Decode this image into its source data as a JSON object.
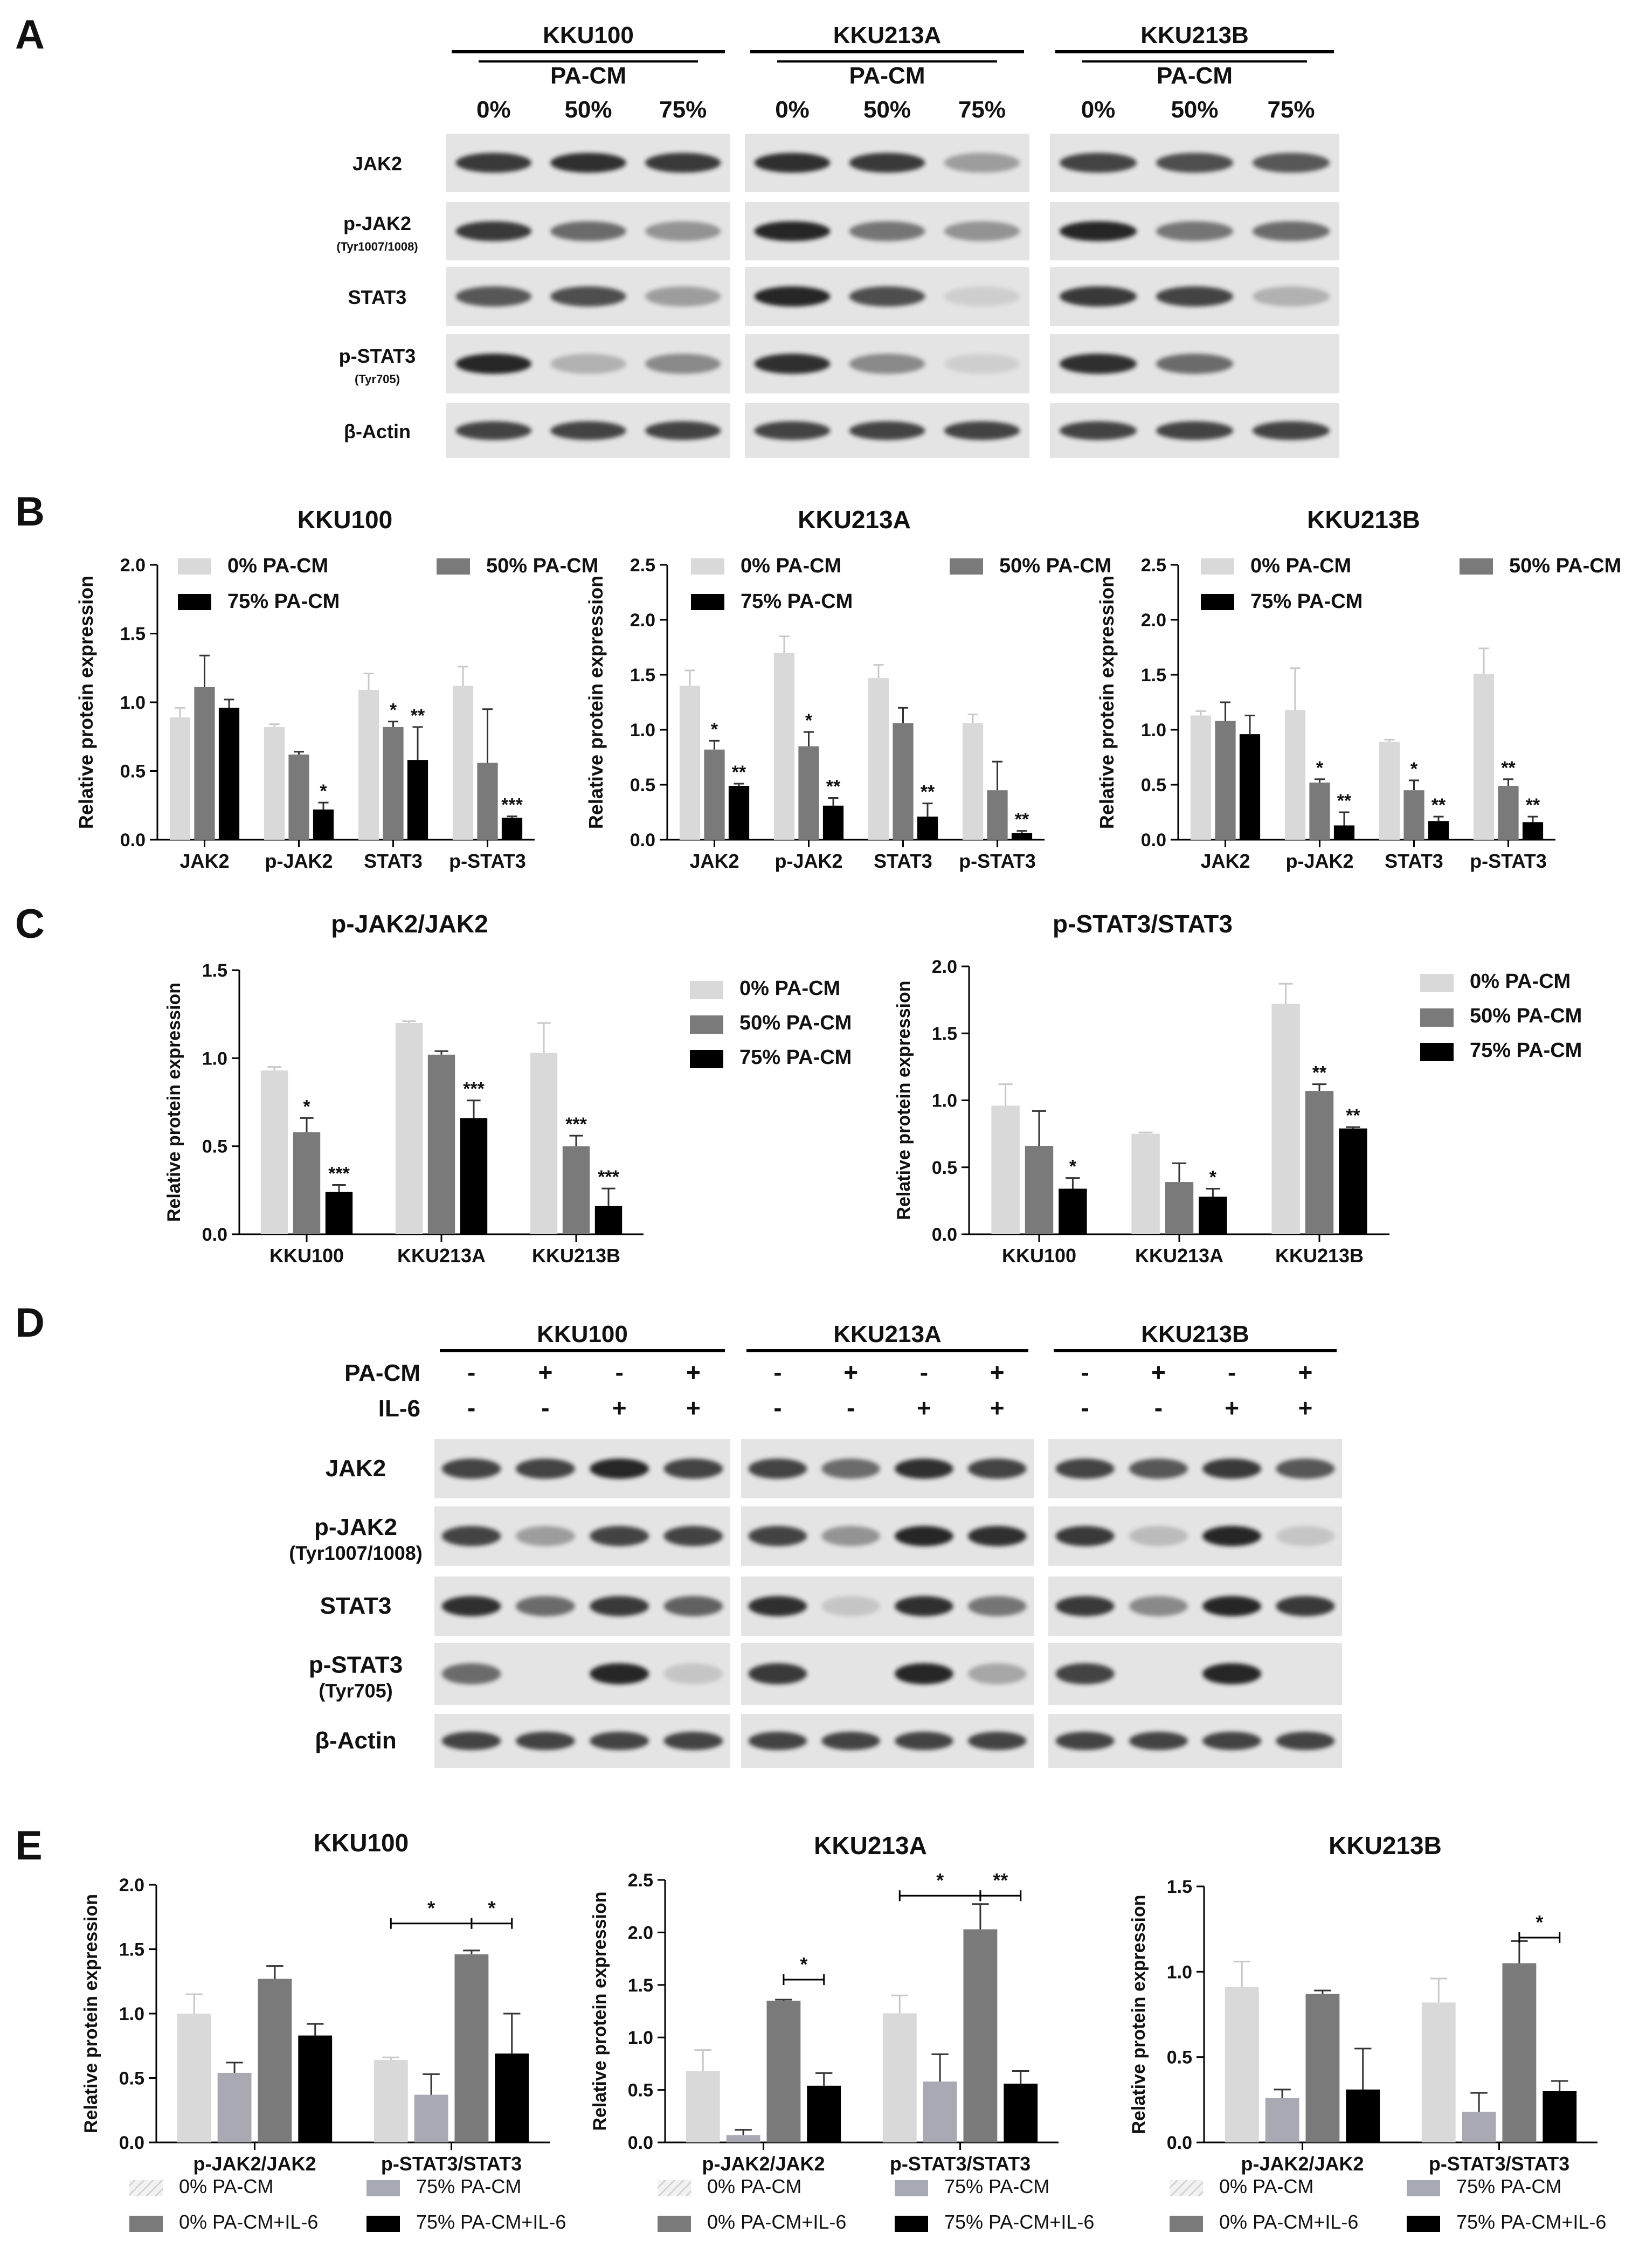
{
  "panels": {
    "A": {
      "letter": "A",
      "cell_lines": [
        "KKU100",
        "KKU213A",
        "KKU213B"
      ],
      "treatment_label": "PA-CM",
      "doses": [
        "0%",
        "50%",
        "75%"
      ],
      "proteins": [
        {
          "name": "JAK2",
          "sub": ""
        },
        {
          "name": "p-JAK2",
          "sub": "(Tyr1007/1008)"
        },
        {
          "name": "STAT3",
          "sub": ""
        },
        {
          "name": "p-STAT3",
          "sub": "(Tyr705)"
        },
        {
          "name": "β-Actin",
          "sub": ""
        }
      ],
      "band_intensity": [
        [
          [
            0.85,
            0.9,
            0.85
          ],
          [
            0.9,
            0.85,
            0.35
          ],
          [
            0.8,
            0.75,
            0.7
          ]
        ],
        [
          [
            0.85,
            0.6,
            0.4
          ],
          [
            0.95,
            0.55,
            0.4
          ],
          [
            0.95,
            0.55,
            0.6
          ]
        ],
        [
          [
            0.7,
            0.75,
            0.35
          ],
          [
            0.95,
            0.75,
            0.1
          ],
          [
            0.85,
            0.8,
            0.25
          ]
        ],
        [
          [
            0.95,
            0.25,
            0.45
          ],
          [
            0.9,
            0.45,
            0.1
          ],
          [
            0.9,
            0.6,
            0.0
          ]
        ],
        [
          [
            0.8,
            0.8,
            0.8
          ],
          [
            0.8,
            0.8,
            0.8
          ],
          [
            0.8,
            0.8,
            0.8
          ]
        ]
      ]
    },
    "B": {
      "letter": "B"
    },
    "C": {
      "letter": "C"
    },
    "D": {
      "letter": "D",
      "cell_lines": [
        "KKU100",
        "KKU213A",
        "KKU213B"
      ],
      "row_labels": [
        "PA-CM",
        "IL-6"
      ],
      "pacm_signs": [
        "-",
        "+",
        "-",
        "+"
      ],
      "il6_signs": [
        "-",
        "-",
        "+",
        "+"
      ],
      "proteins": [
        {
          "name": "JAK2",
          "sub": ""
        },
        {
          "name": "p-JAK2",
          "sub": "(Tyr1007/1008)"
        },
        {
          "name": "STAT3",
          "sub": ""
        },
        {
          "name": "p-STAT3",
          "sub": "(Tyr705)"
        },
        {
          "name": "β-Actin",
          "sub": ""
        }
      ],
      "band_intensity": [
        [
          [
            0.8,
            0.8,
            0.95,
            0.8
          ],
          [
            0.8,
            0.6,
            0.9,
            0.8
          ],
          [
            0.8,
            0.7,
            0.85,
            0.7
          ]
        ],
        [
          [
            0.8,
            0.35,
            0.8,
            0.8
          ],
          [
            0.8,
            0.4,
            0.95,
            0.9
          ],
          [
            0.85,
            0.2,
            0.95,
            0.15
          ]
        ],
        [
          [
            0.9,
            0.6,
            0.85,
            0.65
          ],
          [
            0.9,
            0.15,
            0.9,
            0.55
          ],
          [
            0.85,
            0.45,
            0.95,
            0.85
          ]
        ],
        [
          [
            0.6,
            0.0,
            0.95,
            0.15
          ],
          [
            0.85,
            0.0,
            0.95,
            0.3
          ],
          [
            0.8,
            0.0,
            0.95,
            0.0
          ]
        ],
        [
          [
            0.8,
            0.8,
            0.8,
            0.8
          ],
          [
            0.8,
            0.8,
            0.8,
            0.8
          ],
          [
            0.8,
            0.8,
            0.8,
            0.8
          ]
        ]
      ]
    },
    "E": {
      "letter": "E"
    }
  },
  "colors": {
    "c0": "#d9d9d9",
    "c50": "#7a7a7a",
    "c75": "#000000",
    "c75light": "#a9a9b3",
    "err": "#c8c8c8",
    "blot_bg": "#e4e4e4",
    "band": "#1a1a1a"
  },
  "chart_data": [
    {
      "id": "B1",
      "type": "bar",
      "title": "KKU100",
      "ylabel": "Relative protein expression",
      "categories": [
        "JAK2",
        "p-JAK2",
        "STAT3",
        "p-STAT3"
      ],
      "ylim": [
        0,
        2.0
      ],
      "yticks": [
        "0.0",
        "0.5",
        "1.0",
        "1.5",
        "2.0"
      ],
      "legend": "top",
      "series": [
        {
          "name": "0% PA-CM",
          "color": "c0",
          "values": [
            0.89,
            0.82,
            1.09,
            1.12
          ],
          "err": [
            0.07,
            0.02,
            0.12,
            0.14
          ],
          "sig": [
            "",
            "",
            "",
            ""
          ]
        },
        {
          "name": "50% PA-CM",
          "color": "c50",
          "values": [
            1.11,
            0.62,
            0.82,
            0.56
          ],
          "err": [
            0.23,
            0.02,
            0.04,
            0.39
          ],
          "sig": [
            "",
            "",
            "*",
            ""
          ]
        },
        {
          "name": "75% PA-CM",
          "color": "c75",
          "values": [
            0.96,
            0.22,
            0.58,
            0.16
          ],
          "err": [
            0.06,
            0.05,
            0.24,
            0.01
          ],
          "sig": [
            "",
            "*",
            "**",
            "***"
          ]
        }
      ]
    },
    {
      "id": "B2",
      "type": "bar",
      "title": "KKU213A",
      "ylabel": "Relative protein expression",
      "categories": [
        "JAK2",
        "p-JAK2",
        "STAT3",
        "p-STAT3"
      ],
      "ylim": [
        0,
        2.5
      ],
      "yticks": [
        "0.0",
        "0.5",
        "1.0",
        "1.5",
        "2.0",
        "2.5"
      ],
      "legend": "top",
      "series": [
        {
          "name": "0% PA-CM",
          "color": "c0",
          "values": [
            1.4,
            1.7,
            1.47,
            1.06
          ],
          "err": [
            0.14,
            0.15,
            0.12,
            0.08
          ],
          "sig": [
            "",
            "",
            "",
            ""
          ]
        },
        {
          "name": "50% PA-CM",
          "color": "c50",
          "values": [
            0.82,
            0.85,
            1.06,
            0.45
          ],
          "err": [
            0.08,
            0.13,
            0.14,
            0.26
          ],
          "sig": [
            "*",
            "*",
            "",
            ""
          ]
        },
        {
          "name": "75% PA-CM",
          "color": "c75",
          "values": [
            0.49,
            0.31,
            0.21,
            0.06
          ],
          "err": [
            0.02,
            0.07,
            0.12,
            0.02
          ],
          "sig": [
            "**",
            "**",
            "**",
            "**"
          ]
        }
      ]
    },
    {
      "id": "B3",
      "type": "bar",
      "title": "KKU213B",
      "ylabel": "Relative protein expression",
      "categories": [
        "JAK2",
        "p-JAK2",
        "STAT3",
        "p-STAT3"
      ],
      "ylim": [
        0,
        2.5
      ],
      "yticks": [
        "0.0",
        "0.5",
        "1.0",
        "1.5",
        "2.0",
        "2.5"
      ],
      "legend": "top",
      "series": [
        {
          "name": "0% PA-CM",
          "color": "c0",
          "values": [
            1.13,
            1.18,
            0.89,
            1.51
          ],
          "err": [
            0.04,
            0.38,
            0.02,
            0.23
          ],
          "sig": [
            "",
            "",
            "",
            ""
          ]
        },
        {
          "name": "50% PA-CM",
          "color": "c50",
          "values": [
            1.08,
            0.52,
            0.45,
            0.49
          ],
          "err": [
            0.17,
            0.03,
            0.09,
            0.06
          ],
          "sig": [
            "",
            "*",
            "*",
            "**"
          ]
        },
        {
          "name": "75% PA-CM",
          "color": "c75",
          "values": [
            0.96,
            0.13,
            0.17,
            0.16
          ],
          "err": [
            0.17,
            0.12,
            0.04,
            0.05
          ],
          "sig": [
            "",
            "**",
            "**",
            "**"
          ]
        }
      ]
    },
    {
      "id": "C1",
      "type": "bar",
      "title": "p-JAK2/JAK2",
      "ylabel": "Relative protein expression",
      "categories": [
        "KKU100",
        "KKU213A",
        "KKU213B"
      ],
      "ylim": [
        0,
        1.5
      ],
      "yticks": [
        "0.0",
        "0.5",
        "1.0",
        "1.5"
      ],
      "legend": "right",
      "series": [
        {
          "name": "0% PA-CM",
          "color": "c0",
          "values": [
            0.93,
            1.2,
            1.03
          ],
          "err": [
            0.02,
            0.01,
            0.17
          ],
          "sig": [
            "",
            "",
            ""
          ]
        },
        {
          "name": "50% PA-CM",
          "color": "c50",
          "values": [
            0.58,
            1.02,
            0.5
          ],
          "err": [
            0.08,
            0.02,
            0.06
          ],
          "sig": [
            "*",
            "",
            "***"
          ]
        },
        {
          "name": "75% PA-CM",
          "color": "c75",
          "values": [
            0.24,
            0.66,
            0.16
          ],
          "err": [
            0.04,
            0.1,
            0.1
          ],
          "sig": [
            "***",
            "***",
            "***"
          ]
        }
      ]
    },
    {
      "id": "C2",
      "type": "bar",
      "title": "p-STAT3/STAT3",
      "ylabel": "Relative protein expression",
      "categories": [
        "KKU100",
        "KKU213A",
        "KKU213B"
      ],
      "ylim": [
        0,
        2.0
      ],
      "yticks": [
        "0.0",
        "0.5",
        "1.0",
        "1.5",
        "2.0"
      ],
      "legend": "right",
      "series": [
        {
          "name": "0% PA-CM",
          "color": "c0",
          "values": [
            0.96,
            0.75,
            1.72
          ],
          "err": [
            0.16,
            0.01,
            0.15
          ],
          "sig": [
            "",
            "",
            ""
          ]
        },
        {
          "name": "50% PA-CM",
          "color": "c50",
          "values": [
            0.66,
            0.39,
            1.07
          ],
          "err": [
            0.26,
            0.14,
            0.05
          ],
          "sig": [
            "",
            "",
            "**"
          ]
        },
        {
          "name": "75% PA-CM",
          "color": "c75",
          "values": [
            0.34,
            0.28,
            0.79
          ],
          "err": [
            0.08,
            0.06,
            0.01
          ],
          "sig": [
            "*",
            "*",
            "**"
          ]
        }
      ]
    },
    {
      "id": "E1",
      "type": "bar",
      "title": "KKU100",
      "ylabel": "Relative protein expression",
      "categories": [
        "p-JAK2/JAK2",
        "p-STAT3/STAT3"
      ],
      "ylim": [
        0,
        2.0
      ],
      "yticks": [
        "0.0",
        "0.5",
        "1.0",
        "1.5",
        "2.0"
      ],
      "legend": "bottom",
      "series": [
        {
          "name": "0% PA-CM",
          "color": "c0",
          "values": [
            1.0,
            0.64
          ],
          "err": [
            0.15,
            0.02
          ]
        },
        {
          "name": "75% PA-CM",
          "color": "c75light",
          "values": [
            0.54,
            0.37
          ],
          "err": [
            0.08,
            0.16
          ]
        },
        {
          "name": "0% PA-CM+IL-6",
          "color": "c50",
          "values": [
            1.27,
            1.46
          ],
          "err": [
            0.1,
            0.03
          ]
        },
        {
          "name": "75% PA-CM+IL-6",
          "color": "c75",
          "values": [
            0.83,
            0.69
          ],
          "err": [
            0.09,
            0.31
          ]
        }
      ],
      "brackets": [
        {
          "cat": 1,
          "from": 0,
          "to": 2,
          "label": "*",
          "y": 1.7
        },
        {
          "cat": 1,
          "from": 2,
          "to": 3,
          "label": "*",
          "y": 1.7
        }
      ]
    },
    {
      "id": "E2",
      "type": "bar",
      "title": "KKU213A",
      "ylabel": "Relative protein expression",
      "categories": [
        "p-JAK2/JAK2",
        "p-STAT3/STAT3"
      ],
      "ylim": [
        0,
        2.5
      ],
      "yticks": [
        "0.0",
        "0.5",
        "1.0",
        "1.5",
        "2.0",
        "2.5"
      ],
      "legend": "bottom",
      "series": [
        {
          "name": "0% PA-CM",
          "color": "c0",
          "values": [
            0.68,
            1.23
          ],
          "err": [
            0.2,
            0.17
          ]
        },
        {
          "name": "75% PA-CM",
          "color": "c75light",
          "values": [
            0.07,
            0.58
          ],
          "err": [
            0.05,
            0.26
          ]
        },
        {
          "name": "0% PA-CM+IL-6",
          "color": "c50",
          "values": [
            1.35,
            2.03
          ],
          "err": [
            0.01,
            0.24
          ]
        },
        {
          "name": "75% PA-CM+IL-6",
          "color": "c75",
          "values": [
            0.54,
            0.56
          ],
          "err": [
            0.12,
            0.12
          ]
        }
      ],
      "brackets": [
        {
          "cat": 0,
          "from": 2,
          "to": 3,
          "label": "*",
          "y": 1.55
        },
        {
          "cat": 1,
          "from": 0,
          "to": 2,
          "label": "*",
          "y": 2.35
        },
        {
          "cat": 1,
          "from": 2,
          "to": 3,
          "label": "**",
          "y": 2.35
        }
      ]
    },
    {
      "id": "E3",
      "type": "bar",
      "title": "KKU213B",
      "ylabel": "Relative protein expression",
      "categories": [
        "p-JAK2/JAK2",
        "p-STAT3/STAT3"
      ],
      "ylim": [
        0,
        1.5
      ],
      "yticks": [
        "0.0",
        "0.5",
        "1.0",
        "1.5"
      ],
      "legend": "bottom",
      "series": [
        {
          "name": "0% PA-CM",
          "color": "c0",
          "values": [
            0.91,
            0.82
          ],
          "err": [
            0.15,
            0.14
          ]
        },
        {
          "name": "75% PA-CM",
          "color": "c75light",
          "values": [
            0.26,
            0.18
          ],
          "err": [
            0.05,
            0.11
          ]
        },
        {
          "name": "0% PA-CM+IL-6",
          "color": "c50",
          "values": [
            0.87,
            1.05
          ],
          "err": [
            0.02,
            0.13
          ]
        },
        {
          "name": "75% PA-CM+IL-6",
          "color": "c75",
          "values": [
            0.31,
            0.3
          ],
          "err": [
            0.24,
            0.06
          ]
        }
      ],
      "brackets": [
        {
          "cat": 1,
          "from": 2,
          "to": 3,
          "label": "*",
          "y": 1.2
        }
      ]
    }
  ]
}
